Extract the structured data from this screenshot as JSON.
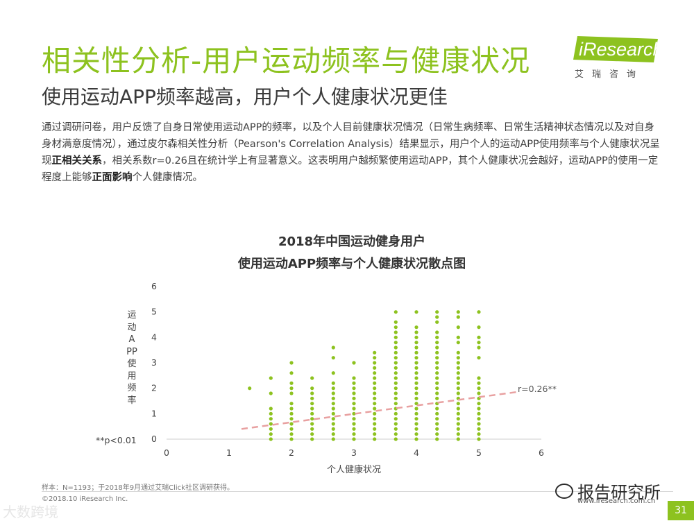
{
  "header": {
    "title": "相关性分析-用户运动频率与健康状况",
    "subtitle": "使用运动APP频率越高，用户个人健康状况更佳"
  },
  "logo": {
    "brand": "iResearch",
    "chinese": "艾瑞咨询"
  },
  "body": {
    "part1": "通过调研问卷，用户反馈了自身日常使用运动APP的频率，以及个人目前健康状况情况（日常生病频率、日常生活精神状态情况以及对自身身材满意度情况），通过皮尔森相关性分析（Pearson's Correlation Analysis）结果显示，用户个人的运动APP使用频率与个人健康状况呈现",
    "bold1": "正相关关系",
    "part2": "，相关系数r=0.26且在统计学上有显著意义。这表明用户越频繁使用运动APP，其个人健康状况会越好，运动APP的使用一定程度上能够",
    "bold2": "正面影响",
    "part3": "个人健康情况。"
  },
  "chart_data": {
    "type": "scatter",
    "title": "2018年中国运动健身用户",
    "subtitle": "使用运动APP频率与个人健康状况散点图",
    "xlabel": "个人健康状况",
    "ylabel": "运动APP使用频率",
    "xlim": [
      0,
      6
    ],
    "ylim": [
      0,
      6
    ],
    "x_ticks": [
      "0",
      "1",
      "2",
      "3",
      "4",
      "5",
      "6"
    ],
    "y_ticks": [
      "0",
      "1",
      "2",
      "3",
      "4",
      "5",
      "6"
    ],
    "point_color": "#8dc21f",
    "trend_color": "#e8a0a0",
    "trendline": {
      "x": [
        1.2,
        5.6
      ],
      "y": [
        0.4,
        1.85
      ]
    },
    "r_label": "r=0.26**",
    "p_note": "**p<0.01",
    "columns": [
      {
        "x": 1.33,
        "y": [
          2.0
        ]
      },
      {
        "x": 1.67,
        "y": [
          0.0,
          0.2,
          0.4,
          0.6,
          0.8,
          1.0,
          1.2,
          1.8,
          2.4
        ]
      },
      {
        "x": 2.0,
        "y": [
          0.0,
          0.2,
          0.4,
          0.6,
          0.8,
          1.0,
          1.2,
          1.4,
          1.8,
          2.0,
          2.2,
          2.6,
          3.0
        ]
      },
      {
        "x": 2.33,
        "y": [
          0.0,
          0.2,
          0.4,
          0.6,
          0.8,
          1.0,
          1.2,
          1.4,
          1.6,
          1.8,
          2.0,
          2.4
        ]
      },
      {
        "x": 2.67,
        "y": [
          0.0,
          0.2,
          0.4,
          0.6,
          0.8,
          1.0,
          1.2,
          1.4,
          1.6,
          1.8,
          2.0,
          2.2,
          2.6,
          3.2,
          3.6
        ]
      },
      {
        "x": 3.0,
        "y": [
          0.0,
          0.2,
          0.4,
          0.6,
          0.8,
          1.0,
          1.2,
          1.4,
          1.6,
          1.8,
          2.0,
          2.2,
          2.4,
          3.0
        ]
      },
      {
        "x": 3.33,
        "y": [
          0.0,
          0.2,
          0.4,
          0.6,
          0.8,
          1.0,
          1.2,
          1.4,
          1.6,
          1.8,
          2.0,
          2.2,
          2.4,
          2.6,
          2.8,
          3.0,
          3.2,
          3.4
        ]
      },
      {
        "x": 3.67,
        "y": [
          0.0,
          0.2,
          0.4,
          0.6,
          0.8,
          1.0,
          1.2,
          1.4,
          1.6,
          1.8,
          2.0,
          2.2,
          2.4,
          2.6,
          2.8,
          3.0,
          3.2,
          3.4,
          3.6,
          3.8,
          4.0,
          4.2,
          4.4,
          4.6,
          5.0
        ]
      },
      {
        "x": 4.0,
        "y": [
          0.0,
          0.2,
          0.4,
          0.6,
          0.8,
          1.0,
          1.2,
          1.4,
          1.6,
          1.8,
          2.0,
          2.2,
          2.4,
          2.6,
          2.8,
          3.0,
          3.2,
          3.4,
          3.6,
          3.8,
          4.0,
          4.2,
          4.4,
          5.0
        ]
      },
      {
        "x": 4.33,
        "y": [
          0.0,
          0.2,
          0.4,
          0.6,
          0.8,
          1.0,
          1.2,
          1.4,
          1.6,
          1.8,
          2.0,
          2.2,
          2.4,
          2.6,
          2.8,
          3.0,
          3.2,
          3.4,
          3.6,
          3.8,
          4.0,
          4.2,
          4.6,
          4.8,
          5.0
        ]
      },
      {
        "x": 4.67,
        "y": [
          0.0,
          0.2,
          0.4,
          0.6,
          0.8,
          1.0,
          1.2,
          1.4,
          1.6,
          1.8,
          2.0,
          2.2,
          2.4,
          2.6,
          2.8,
          3.0,
          3.2,
          3.4,
          3.8,
          4.0,
          4.4,
          4.8,
          5.0
        ]
      },
      {
        "x": 5.0,
        "y": [
          0.0,
          0.2,
          0.4,
          0.6,
          0.8,
          1.0,
          1.2,
          1.4,
          1.6,
          1.8,
          2.0,
          2.2,
          2.4,
          3.2,
          3.6,
          3.8,
          4.0,
          4.4,
          5.0
        ]
      }
    ]
  },
  "footer": {
    "source": "样本：N=1193；于2018年9月通过艾瑞Click社区调研获得。",
    "copyright": "©2018.10 iResearch Inc.",
    "url": "www.iresearch.com.cn",
    "page": "31",
    "watermark_left": "大数跨境",
    "watermark_right": "报告研究所"
  }
}
